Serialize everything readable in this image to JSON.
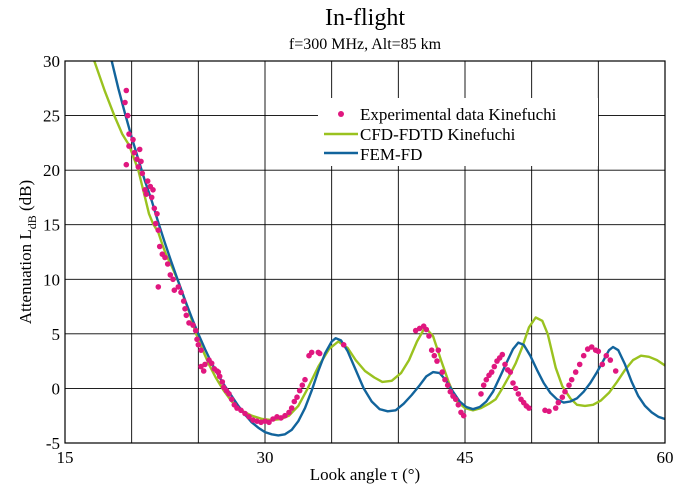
{
  "chart_data": {
    "type": "line",
    "title": "In-flight",
    "subtitle": "f=300 MHz, Alt=85 km",
    "xlabel": "Look angle τ (°)",
    "ylabel": {
      "main": "Attenuation L",
      "sub": "dB",
      "unit": " (dB)"
    },
    "xlim": [
      15,
      60
    ],
    "ylim": [
      -5,
      30
    ],
    "xticks": [
      15,
      30,
      45,
      60
    ],
    "yticks": [
      -5,
      0,
      5,
      10,
      15,
      20,
      25,
      30
    ],
    "x_grid_lines": [
      20,
      25,
      30,
      35,
      40,
      45,
      50,
      55,
      60
    ],
    "grid": true,
    "legend_position": "top-right",
    "series": [
      {
        "name": "Experimental data Kinefuchi",
        "kind": "scatter",
        "color": "#e0177f",
        "points": [
          [
            19.6,
            27.3
          ],
          [
            19.5,
            26.2
          ],
          [
            19.7,
            25.0
          ],
          [
            19.8,
            23.3
          ],
          [
            19.8,
            22.2
          ],
          [
            19.6,
            20.5
          ],
          [
            20.1,
            22.8
          ],
          [
            20.2,
            21.6
          ],
          [
            20.4,
            21.0
          ],
          [
            20.5,
            20.3
          ],
          [
            20.6,
            21.9
          ],
          [
            20.7,
            20.8
          ],
          [
            20.8,
            19.7
          ],
          [
            21.0,
            18.2
          ],
          [
            21.1,
            17.8
          ],
          [
            21.2,
            19.0
          ],
          [
            21.4,
            18.5
          ],
          [
            21.5,
            17.5
          ],
          [
            21.6,
            18.2
          ],
          [
            21.7,
            16.5
          ],
          [
            21.8,
            15.1
          ],
          [
            21.9,
            16.0
          ],
          [
            22.0,
            14.5
          ],
          [
            22.1,
            13.0
          ],
          [
            22.3,
            12.3
          ],
          [
            22.5,
            12.0
          ],
          [
            22.7,
            11.4
          ],
          [
            22.9,
            10.4
          ],
          [
            23.1,
            10.0
          ],
          [
            23.2,
            9.0
          ],
          [
            22.0,
            9.3
          ],
          [
            23.5,
            9.3
          ],
          [
            23.7,
            8.8
          ],
          [
            23.9,
            8.0
          ],
          [
            24.0,
            7.3
          ],
          [
            24.1,
            6.7
          ],
          [
            24.3,
            6.0
          ],
          [
            24.6,
            5.8
          ],
          [
            24.8,
            5.3
          ],
          [
            24.9,
            4.5
          ],
          [
            25.0,
            4.0
          ],
          [
            25.2,
            3.5
          ],
          [
            25.2,
            2.0
          ],
          [
            25.4,
            1.6
          ],
          [
            25.5,
            2.2
          ],
          [
            25.8,
            2.6
          ],
          [
            26.0,
            2.3
          ],
          [
            26.2,
            1.8
          ],
          [
            26.4,
            1.6
          ],
          [
            26.5,
            1.5
          ],
          [
            26.6,
            1.1
          ],
          [
            26.8,
            0.6
          ],
          [
            26.9,
            0.1
          ],
          [
            27.1,
            -0.2
          ],
          [
            27.3,
            -0.5
          ],
          [
            27.5,
            -1.0
          ],
          [
            27.7,
            -1.5
          ],
          [
            27.9,
            -1.8
          ],
          [
            28.2,
            -2.0
          ],
          [
            28.5,
            -2.3
          ],
          [
            28.8,
            -2.6
          ],
          [
            29.1,
            -2.9
          ],
          [
            29.4,
            -3.0
          ],
          [
            29.7,
            -3.1
          ],
          [
            30.0,
            -3.0
          ],
          [
            30.3,
            -3.1
          ],
          [
            30.6,
            -2.8
          ],
          [
            30.9,
            -2.6
          ],
          [
            31.2,
            -2.7
          ],
          [
            31.5,
            -2.5
          ],
          [
            31.8,
            -2.2
          ],
          [
            32.0,
            -1.8
          ],
          [
            32.2,
            -1.2
          ],
          [
            32.4,
            -0.8
          ],
          [
            32.6,
            -0.2
          ],
          [
            32.8,
            0.3
          ],
          [
            33.0,
            0.8
          ],
          [
            33.3,
            3.0
          ],
          [
            33.5,
            3.3
          ],
          [
            34.0,
            3.3
          ],
          [
            34.1,
            3.2
          ],
          [
            35.9,
            4.0
          ],
          [
            41.3,
            5.3
          ],
          [
            41.6,
            5.5
          ],
          [
            41.9,
            5.7
          ],
          [
            42.1,
            5.4
          ],
          [
            42.3,
            4.8
          ],
          [
            42.5,
            3.5
          ],
          [
            42.7,
            3.0
          ],
          [
            42.9,
            2.5
          ],
          [
            43.0,
            3.5
          ],
          [
            43.3,
            1.5
          ],
          [
            43.5,
            0.8
          ],
          [
            43.7,
            0.3
          ],
          [
            43.9,
            -0.3
          ],
          [
            44.1,
            -0.7
          ],
          [
            44.3,
            -1.0
          ],
          [
            44.5,
            -1.5
          ],
          [
            44.7,
            -2.2
          ],
          [
            44.9,
            -2.5
          ],
          [
            46.2,
            -0.5
          ],
          [
            46.4,
            0.3
          ],
          [
            46.6,
            0.8
          ],
          [
            46.8,
            1.2
          ],
          [
            47.0,
            1.5
          ],
          [
            47.2,
            2.0
          ],
          [
            47.4,
            2.5
          ],
          [
            47.6,
            2.8
          ],
          [
            47.8,
            3.1
          ],
          [
            48.0,
            2.2
          ],
          [
            48.2,
            1.7
          ],
          [
            48.4,
            1.5
          ],
          [
            48.6,
            0.5
          ],
          [
            48.8,
            0.0
          ],
          [
            49.0,
            -0.5
          ],
          [
            49.2,
            -1.0
          ],
          [
            49.4,
            -1.3
          ],
          [
            49.6,
            -1.6
          ],
          [
            49.8,
            -1.8
          ],
          [
            51.0,
            -2.0
          ],
          [
            51.3,
            -2.1
          ],
          [
            51.8,
            -1.8
          ],
          [
            52.0,
            -1.3
          ],
          [
            52.3,
            -0.8
          ],
          [
            52.5,
            -0.3
          ],
          [
            52.8,
            0.3
          ],
          [
            53.0,
            0.8
          ],
          [
            53.3,
            1.5
          ],
          [
            53.6,
            2.2
          ],
          [
            53.9,
            3.0
          ],
          [
            54.2,
            3.6
          ],
          [
            54.5,
            3.8
          ],
          [
            54.8,
            3.5
          ],
          [
            55.0,
            3.4
          ],
          [
            55.3,
            2.2
          ],
          [
            55.6,
            3.0
          ],
          [
            55.9,
            2.6
          ],
          [
            56.3,
            1.6
          ]
        ]
      },
      {
        "name": "CFD-FDTD Kinefuchi",
        "kind": "line",
        "color": "#9ac21f",
        "points": [
          [
            17.2,
            30.0
          ],
          [
            18.0,
            27.2
          ],
          [
            18.7,
            25.0
          ],
          [
            19.3,
            23.3
          ],
          [
            19.8,
            22.3
          ],
          [
            20.2,
            21.0
          ],
          [
            20.5,
            20.0
          ],
          [
            20.9,
            18.0
          ],
          [
            21.3,
            16.0
          ],
          [
            21.6,
            15.1
          ],
          [
            22.0,
            14.3
          ],
          [
            22.3,
            13.2
          ],
          [
            22.6,
            12.2
          ],
          [
            23.0,
            11.2
          ],
          [
            23.5,
            9.8
          ],
          [
            23.9,
            8.4
          ],
          [
            24.4,
            6.7
          ],
          [
            24.8,
            5.1
          ],
          [
            25.3,
            3.6
          ],
          [
            25.8,
            2.2
          ],
          [
            26.3,
            1.0
          ],
          [
            26.9,
            -0.2
          ],
          [
            27.5,
            -1.2
          ],
          [
            28.2,
            -2.0
          ],
          [
            29.0,
            -2.5
          ],
          [
            29.8,
            -2.8
          ],
          [
            30.5,
            -2.9
          ],
          [
            31.2,
            -2.8
          ],
          [
            31.8,
            -2.5
          ],
          [
            32.5,
            -1.6
          ],
          [
            33.2,
            0.0
          ],
          [
            34.0,
            2.0
          ],
          [
            34.8,
            3.6
          ],
          [
            35.5,
            4.3
          ],
          [
            36.2,
            3.7
          ],
          [
            36.8,
            2.6
          ],
          [
            37.5,
            1.6
          ],
          [
            38.2,
            1.0
          ],
          [
            38.8,
            0.6
          ],
          [
            39.5,
            0.7
          ],
          [
            40.2,
            1.4
          ],
          [
            40.8,
            2.6
          ],
          [
            41.4,
            4.3
          ],
          [
            42.0,
            5.6
          ],
          [
            42.6,
            4.8
          ],
          [
            43.2,
            2.6
          ],
          [
            43.8,
            0.5
          ],
          [
            44.4,
            -1.2
          ],
          [
            45.0,
            -1.8
          ],
          [
            45.6,
            -2.0
          ],
          [
            46.2,
            -1.8
          ],
          [
            46.8,
            -1.4
          ],
          [
            47.3,
            -1.0
          ],
          [
            47.8,
            0.0
          ],
          [
            48.3,
            1.1
          ],
          [
            48.8,
            2.3
          ],
          [
            49.3,
            3.8
          ],
          [
            49.8,
            5.6
          ],
          [
            50.3,
            6.5
          ],
          [
            50.8,
            6.2
          ],
          [
            51.2,
            5.0
          ],
          [
            51.8,
            1.9
          ],
          [
            52.3,
            0.2
          ],
          [
            52.9,
            -0.9
          ],
          [
            53.4,
            -1.5
          ],
          [
            54.0,
            -1.6
          ],
          [
            54.6,
            -1.5
          ],
          [
            55.2,
            -1.1
          ],
          [
            55.8,
            -0.4
          ],
          [
            56.4,
            0.6
          ],
          [
            57.0,
            1.7
          ],
          [
            57.6,
            2.6
          ],
          [
            58.2,
            3.0
          ],
          [
            58.8,
            2.9
          ],
          [
            59.4,
            2.6
          ],
          [
            60.0,
            2.1
          ]
        ]
      },
      {
        "name": "FEM-FD",
        "kind": "line",
        "color": "#12649c",
        "points": [
          [
            18.5,
            30.0
          ],
          [
            19.0,
            27.5
          ],
          [
            19.5,
            25.2
          ],
          [
            20.0,
            23.0
          ],
          [
            20.5,
            21.0
          ],
          [
            21.0,
            19.0
          ],
          [
            21.5,
            17.2
          ],
          [
            22.0,
            15.2
          ],
          [
            22.5,
            13.3
          ],
          [
            23.0,
            11.5
          ],
          [
            23.5,
            9.8
          ],
          [
            24.0,
            8.1
          ],
          [
            24.5,
            6.5
          ],
          [
            25.0,
            5.0
          ],
          [
            25.5,
            3.6
          ],
          [
            26.0,
            2.3
          ],
          [
            26.5,
            1.2
          ],
          [
            27.0,
            0.2
          ],
          [
            27.5,
            -0.7
          ],
          [
            28.0,
            -1.6
          ],
          [
            28.5,
            -2.4
          ],
          [
            29.0,
            -3.1
          ],
          [
            29.5,
            -3.6
          ],
          [
            30.0,
            -4.0
          ],
          [
            30.5,
            -4.2
          ],
          [
            31.0,
            -4.3
          ],
          [
            31.5,
            -4.2
          ],
          [
            32.0,
            -3.8
          ],
          [
            32.5,
            -3.0
          ],
          [
            33.0,
            -1.8
          ],
          [
            33.5,
            -0.2
          ],
          [
            34.0,
            1.6
          ],
          [
            34.5,
            3.2
          ],
          [
            35.0,
            4.3
          ],
          [
            35.3,
            4.6
          ],
          [
            35.7,
            4.4
          ],
          [
            36.2,
            3.4
          ],
          [
            36.8,
            1.7
          ],
          [
            37.4,
            0.0
          ],
          [
            38.0,
            -1.2
          ],
          [
            38.6,
            -1.9
          ],
          [
            39.2,
            -2.1
          ],
          [
            39.8,
            -2.0
          ],
          [
            40.4,
            -1.4
          ],
          [
            41.0,
            -0.6
          ],
          [
            41.6,
            0.3
          ],
          [
            42.1,
            1.1
          ],
          [
            42.6,
            1.5
          ],
          [
            43.1,
            1.4
          ],
          [
            43.6,
            0.7
          ],
          [
            44.1,
            -0.3
          ],
          [
            44.6,
            -1.2
          ],
          [
            45.1,
            -1.7
          ],
          [
            45.6,
            -1.9
          ],
          [
            46.1,
            -1.7
          ],
          [
            46.6,
            -1.2
          ],
          [
            47.1,
            -0.3
          ],
          [
            47.6,
            1.0
          ],
          [
            48.1,
            2.3
          ],
          [
            48.6,
            3.6
          ],
          [
            49.0,
            4.2
          ],
          [
            49.4,
            4.0
          ],
          [
            49.9,
            3.0
          ],
          [
            50.4,
            1.7
          ],
          [
            50.9,
            0.5
          ],
          [
            51.4,
            -0.4
          ],
          [
            51.9,
            -1.0
          ],
          [
            52.4,
            -1.3
          ],
          [
            52.9,
            -1.2
          ],
          [
            53.4,
            -0.9
          ],
          [
            53.9,
            -0.3
          ],
          [
            54.4,
            0.5
          ],
          [
            54.9,
            1.5
          ],
          [
            55.4,
            2.6
          ],
          [
            55.8,
            3.5
          ],
          [
            56.1,
            3.8
          ],
          [
            56.5,
            3.5
          ],
          [
            57.0,
            2.2
          ],
          [
            57.5,
            0.6
          ],
          [
            58.0,
            -0.7
          ],
          [
            58.5,
            -1.6
          ],
          [
            59.0,
            -2.2
          ],
          [
            59.5,
            -2.6
          ],
          [
            60.0,
            -2.8
          ]
        ]
      }
    ]
  }
}
